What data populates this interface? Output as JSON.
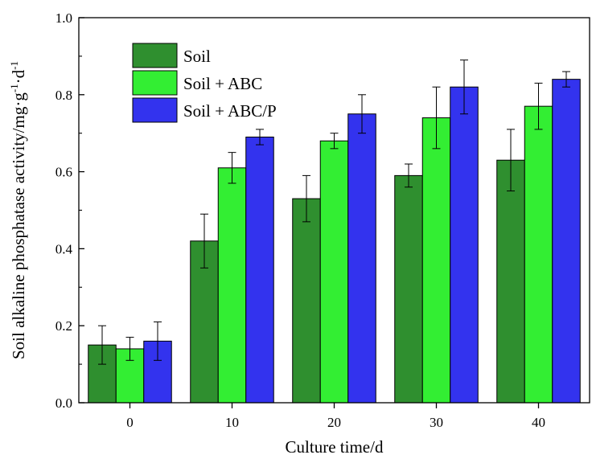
{
  "chart_data": {
    "type": "bar",
    "title": "",
    "xlabel": "Culture time/d",
    "ylabel": "Soil alkaline phosphatase activity/mg·g",
    "ylabel_sup1": "-1",
    "ylabel_mid": "·d",
    "ylabel_sup2": "-1",
    "categories": [
      "0",
      "10",
      "20",
      "30",
      "40"
    ],
    "ylim": [
      0,
      1.0
    ],
    "yticks": [
      0.0,
      0.2,
      0.4,
      0.6,
      0.8,
      1.0
    ],
    "ytick_labels": [
      "0.0",
      "0.2",
      "0.4",
      "0.6",
      "0.8",
      "1.0"
    ],
    "legend_position": "top-left",
    "grid": false,
    "series": [
      {
        "name": "Soil",
        "color": "#2f8f2f",
        "values": [
          0.15,
          0.42,
          0.53,
          0.59,
          0.63
        ],
        "errors": [
          0.05,
          0.07,
          0.06,
          0.03,
          0.08
        ]
      },
      {
        "name": "Soil + ABC",
        "color": "#33ee33",
        "values": [
          0.14,
          0.61,
          0.68,
          0.74,
          0.77
        ],
        "errors": [
          0.03,
          0.04,
          0.02,
          0.08,
          0.06
        ]
      },
      {
        "name": "Soil + ABC/P",
        "color": "#3333ee",
        "values": [
          0.16,
          0.69,
          0.75,
          0.82,
          0.84
        ],
        "errors": [
          0.05,
          0.02,
          0.05,
          0.07,
          0.02
        ]
      }
    ]
  }
}
